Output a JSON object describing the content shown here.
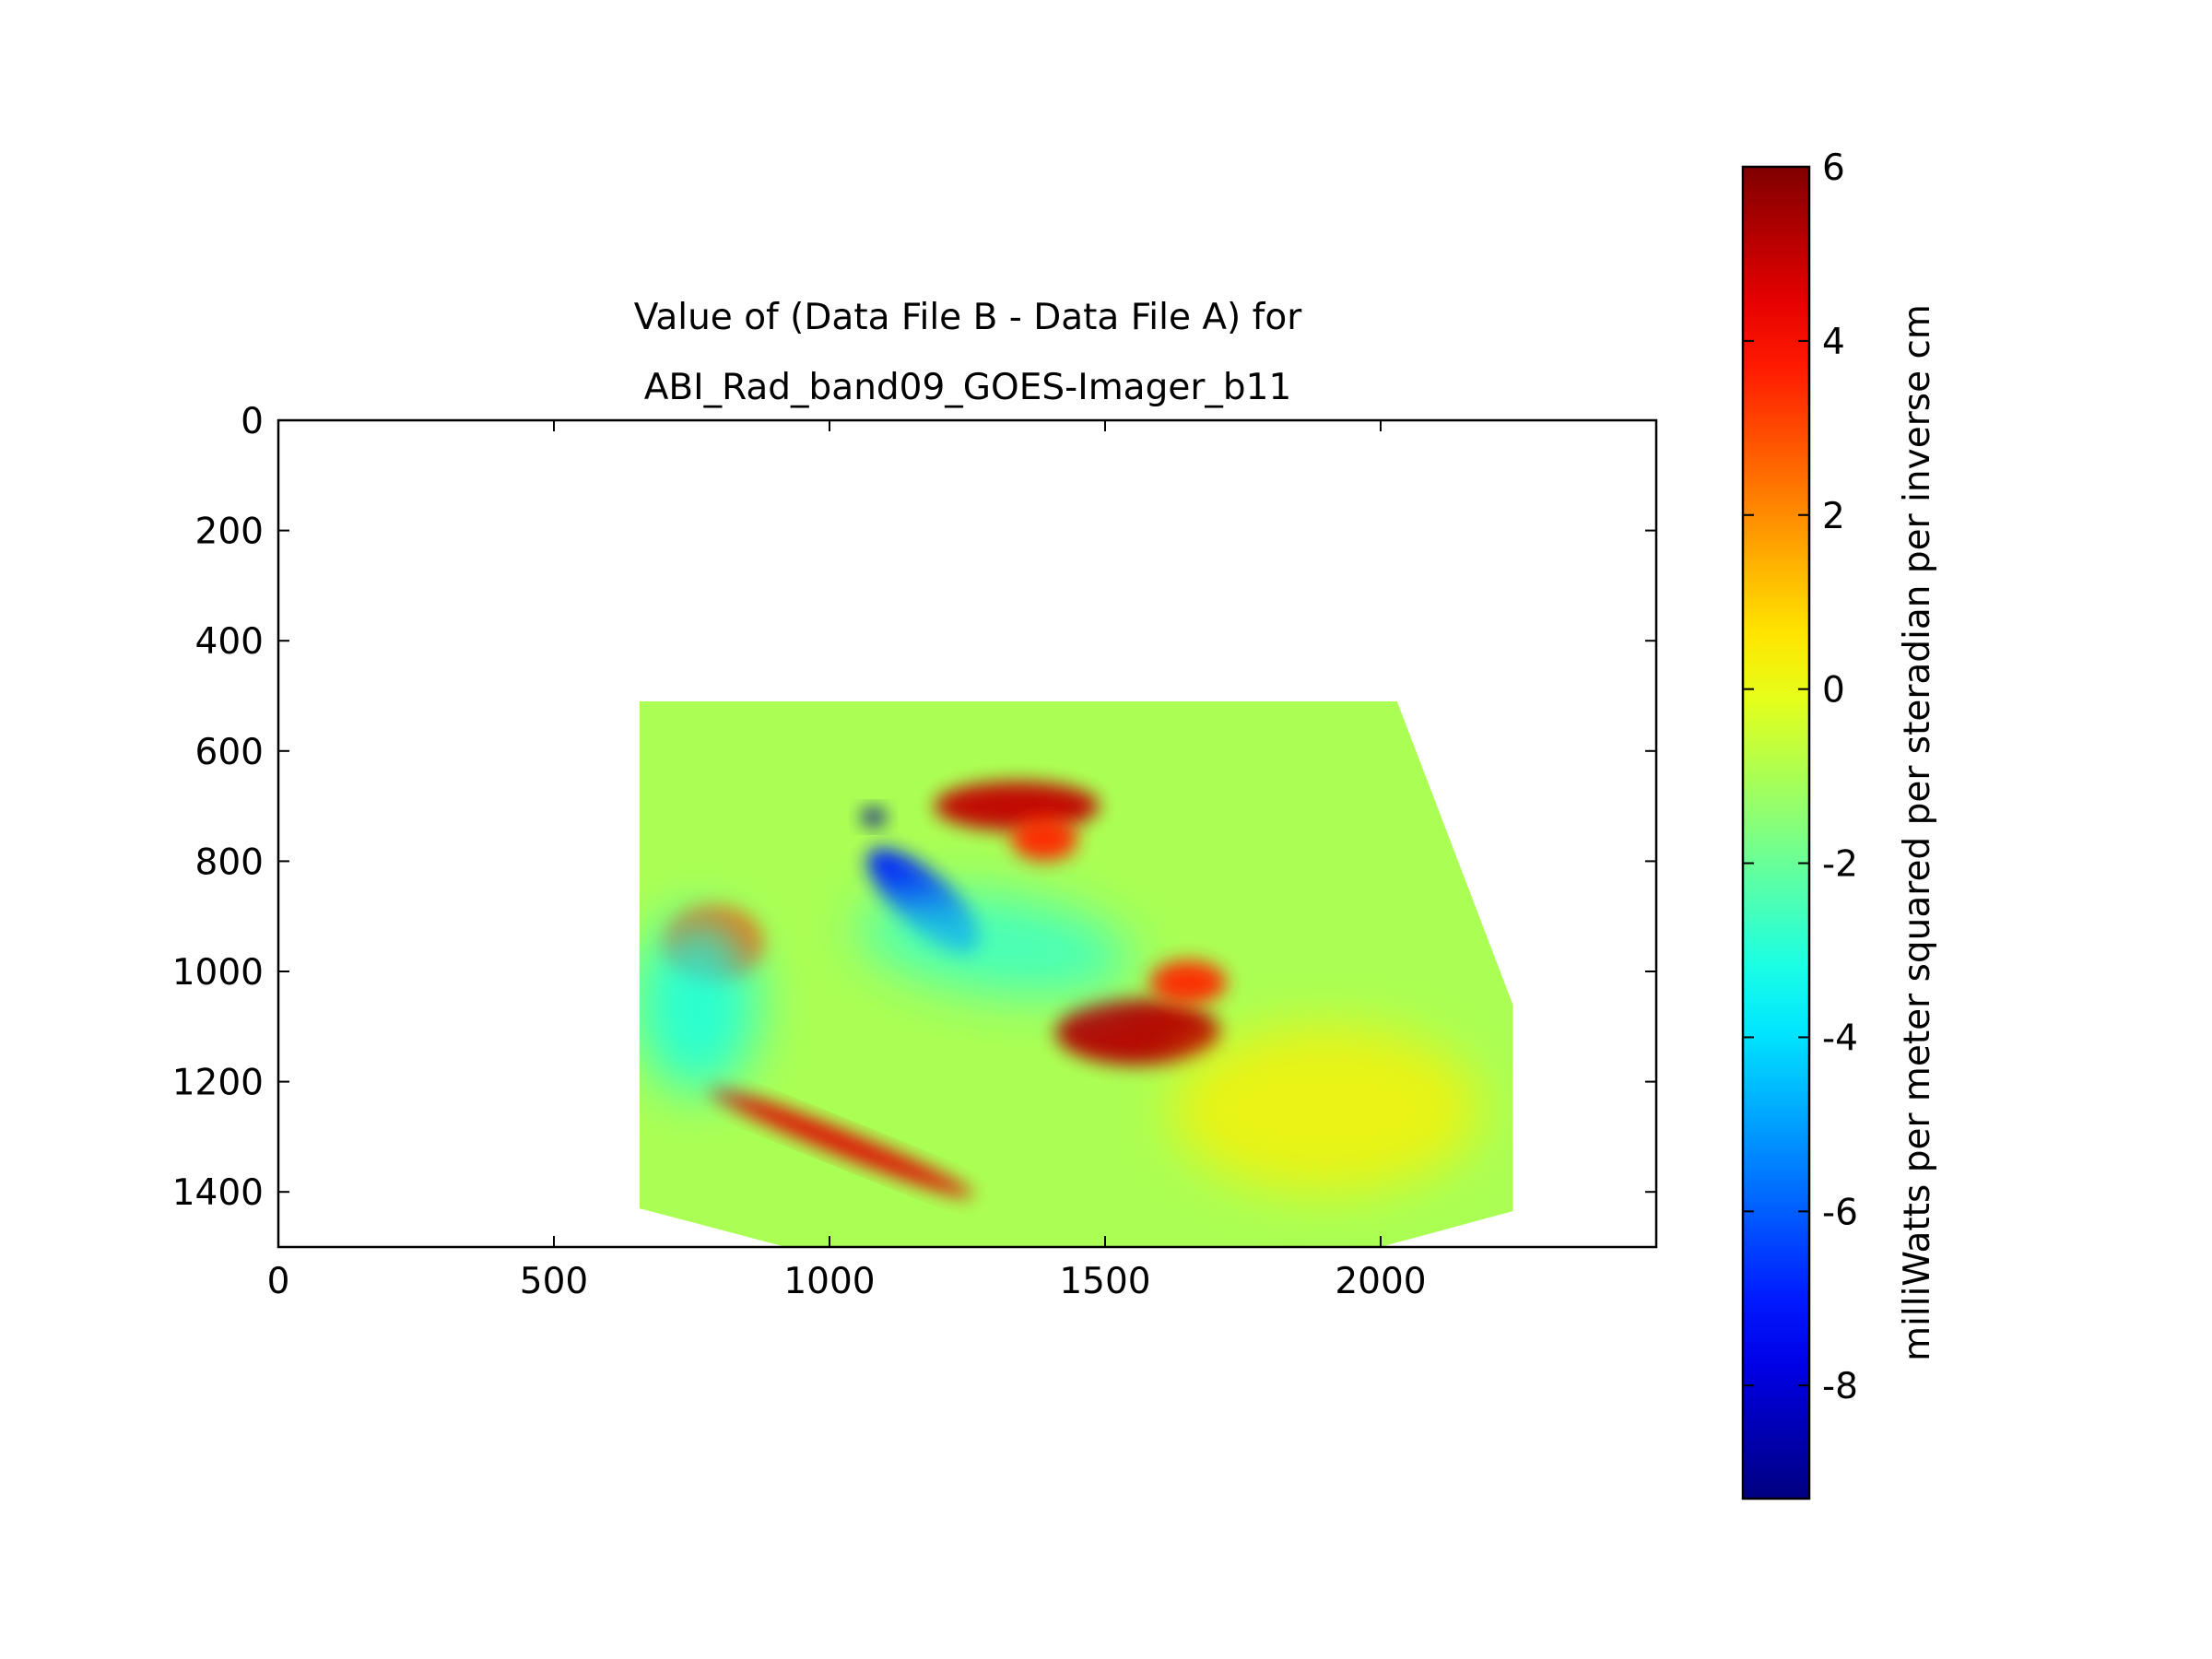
{
  "chart_data": {
    "type": "heatmap",
    "title_lines": [
      "Value of (Data File B - Data File A) for",
      "ABI_Rad_band09_GOES-Imager_b11"
    ],
    "xlabel": "",
    "ylabel": "",
    "xlim": [
      0,
      2500
    ],
    "ylim": [
      1500,
      0
    ],
    "x_ticks": [
      0,
      500,
      1000,
      1500,
      2000
    ],
    "y_ticks": [
      0,
      200,
      400,
      600,
      800,
      1000,
      1200,
      1400
    ],
    "grid": false,
    "colormap": "jet",
    "data_footprint": [
      [
        655,
        510
      ],
      [
        2030,
        510
      ],
      [
        2240,
        1060
      ],
      [
        2240,
        1435
      ],
      [
        2000,
        1500
      ],
      [
        920,
        1500
      ],
      [
        655,
        1430
      ]
    ],
    "background_value": -1.0,
    "features": [
      {
        "kind": "positive",
        "cx": 1340,
        "cy": 700,
        "rx": 150,
        "ry": 45,
        "value": 5.0
      },
      {
        "kind": "positive",
        "cx": 1390,
        "cy": 760,
        "rx": 60,
        "ry": 40,
        "value": 3.5
      },
      {
        "kind": "positive",
        "cx": 1560,
        "cy": 1110,
        "rx": 150,
        "ry": 60,
        "value": 5.2
      },
      {
        "kind": "positive",
        "cx": 1650,
        "cy": 1020,
        "rx": 70,
        "ry": 40,
        "value": 3.5
      },
      {
        "kind": "positive",
        "cx": 1020,
        "cy": 1310,
        "rx": 260,
        "ry": 22,
        "rotate": 22,
        "value": 4.5
      },
      {
        "kind": "positive",
        "cx": 790,
        "cy": 950,
        "rx": 90,
        "ry": 70,
        "value": 2.5
      },
      {
        "kind": "negative",
        "cx": 1170,
        "cy": 870,
        "rx": 130,
        "ry": 48,
        "rotate": 42,
        "value": -7.0
      },
      {
        "kind": "negative",
        "cx": 1080,
        "cy": 720,
        "rx": 22,
        "ry": 16,
        "value": -9.0
      },
      {
        "kind": "cool",
        "cx": 1300,
        "cy": 950,
        "rx": 250,
        "ry": 90,
        "rotate": 8,
        "value": -3.0
      },
      {
        "kind": "cool",
        "cx": 760,
        "cy": 1060,
        "rx": 110,
        "ry": 160,
        "value": -3.5
      },
      {
        "kind": "warm",
        "cx": 1900,
        "cy": 1250,
        "rx": 280,
        "ry": 150,
        "value": 0.5
      }
    ],
    "colorbar": {
      "min": -9.3,
      "max": 6.0,
      "ticks": [
        6,
        4,
        2,
        0,
        -2,
        -4,
        -6,
        -8
      ],
      "label": "milliWatts per meter squared per steradian per inverse cm"
    }
  }
}
